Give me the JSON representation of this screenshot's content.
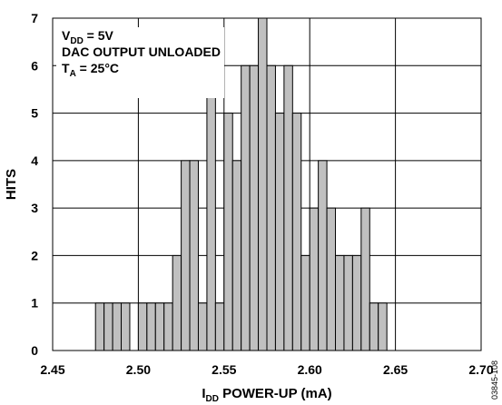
{
  "chart_data": {
    "type": "bar",
    "title": "",
    "xlabel_main": "I",
    "xlabel_sub": "DD",
    "xlabel_rest": " POWER-UP (mA)",
    "ylabel": "HITS",
    "xlim": [
      2.45,
      2.7
    ],
    "ylim": [
      0,
      7
    ],
    "grid": true,
    "bin_width": 0.005,
    "x_ticks": [
      "2.45",
      "2.50",
      "2.55",
      "2.60",
      "2.65",
      "2.70"
    ],
    "x_tick_values": [
      2.45,
      2.5,
      2.55,
      2.6,
      2.65,
      2.7
    ],
    "y_ticks": [
      "0",
      "1",
      "2",
      "3",
      "4",
      "5",
      "6",
      "7"
    ],
    "bins": [
      {
        "x": 2.475,
        "value": 1
      },
      {
        "x": 2.48,
        "value": 1
      },
      {
        "x": 2.485,
        "value": 1
      },
      {
        "x": 2.49,
        "value": 1
      },
      {
        "x": 2.5,
        "value": 1
      },
      {
        "x": 2.505,
        "value": 1
      },
      {
        "x": 2.51,
        "value": 1
      },
      {
        "x": 2.515,
        "value": 1
      },
      {
        "x": 2.52,
        "value": 2
      },
      {
        "x": 2.525,
        "value": 4
      },
      {
        "x": 2.53,
        "value": 4
      },
      {
        "x": 2.535,
        "value": 1
      },
      {
        "x": 2.54,
        "value": 6
      },
      {
        "x": 2.545,
        "value": 1
      },
      {
        "x": 2.55,
        "value": 5
      },
      {
        "x": 2.555,
        "value": 4
      },
      {
        "x": 2.56,
        "value": 6
      },
      {
        "x": 2.565,
        "value": 6
      },
      {
        "x": 2.57,
        "value": 7
      },
      {
        "x": 2.575,
        "value": 6
      },
      {
        "x": 2.58,
        "value": 5
      },
      {
        "x": 2.585,
        "value": 6
      },
      {
        "x": 2.59,
        "value": 5
      },
      {
        "x": 2.595,
        "value": 2
      },
      {
        "x": 2.6,
        "value": 3
      },
      {
        "x": 2.605,
        "value": 4
      },
      {
        "x": 2.61,
        "value": 3
      },
      {
        "x": 2.615,
        "value": 2
      },
      {
        "x": 2.62,
        "value": 2
      },
      {
        "x": 2.625,
        "value": 2
      },
      {
        "x": 2.63,
        "value": 3
      },
      {
        "x": 2.635,
        "value": 1
      },
      {
        "x": 2.64,
        "value": 1
      }
    ],
    "annotations": [
      {
        "main": "V",
        "sub": "DD",
        "rest": " = 5V"
      },
      {
        "main": "DAC OUTPUT UNLOADED",
        "sub": "",
        "rest": ""
      },
      {
        "main": "T",
        "sub": "A",
        "rest": " = 25°C"
      }
    ],
    "figure_id": "03845-108",
    "colors": {
      "bar_fill": "#c0c0c0",
      "bar_stroke": "#000000",
      "grid": "#000000"
    }
  }
}
